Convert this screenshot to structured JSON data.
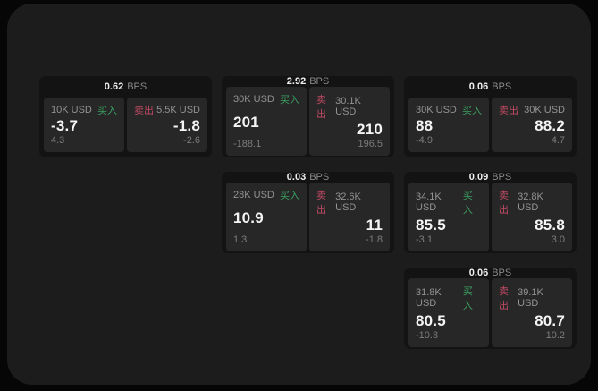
{
  "theme": {
    "page_bg": "#060606",
    "panel_bg": "#1c1c1c",
    "card_bg": "#131313",
    "tile_bg": "#272727",
    "text_primary": "#f5f5f5",
    "text_secondary": "#939393",
    "text_muted": "#7c7c7c",
    "buy_color": "#3aa061",
    "sell_color": "#c04a63"
  },
  "labels": {
    "bps_unit": "BPS",
    "buy": "买入",
    "sell": "卖出"
  },
  "cards": [
    {
      "grid": {
        "row": 1,
        "col": 1
      },
      "spread_bps": "0.62",
      "buy": {
        "size": "10K USD",
        "price": "-3.7",
        "delta": "4.3"
      },
      "sell": {
        "size": "5.5K USD",
        "price": "-1.8",
        "delta": "-2.6"
      }
    },
    {
      "grid": {
        "row": 1,
        "col": 2
      },
      "spread_bps": "2.92",
      "buy": {
        "size": "30K USD",
        "price": "201",
        "delta": "-188.1"
      },
      "sell": {
        "size": "30.1K USD",
        "price": "210",
        "delta": "196.5"
      }
    },
    {
      "grid": {
        "row": 1,
        "col": 3
      },
      "spread_bps": "0.06",
      "buy": {
        "size": "30K USD",
        "price": "88",
        "delta": "-4.9"
      },
      "sell": {
        "size": "30K USD",
        "price": "88.2",
        "delta": "4.7"
      }
    },
    {
      "grid": {
        "row": 2,
        "col": 2
      },
      "spread_bps": "0.03",
      "buy": {
        "size": "28K USD",
        "price": "10.9",
        "delta": "1.3"
      },
      "sell": {
        "size": "32.6K USD",
        "price": "11",
        "delta": "-1.8"
      }
    },
    {
      "grid": {
        "row": 2,
        "col": 3
      },
      "spread_bps": "0.09",
      "buy": {
        "size": "34.1K USD",
        "price": "85.5",
        "delta": "-3.1"
      },
      "sell": {
        "size": "32.8K USD",
        "price": "85.8",
        "delta": "3.0"
      }
    },
    {
      "grid": {
        "row": 3,
        "col": 3
      },
      "spread_bps": "0.06",
      "buy": {
        "size": "31.8K USD",
        "price": "80.5",
        "delta": "-10.8"
      },
      "sell": {
        "size": "39.1K USD",
        "price": "80.7",
        "delta": "10.2"
      }
    }
  ]
}
